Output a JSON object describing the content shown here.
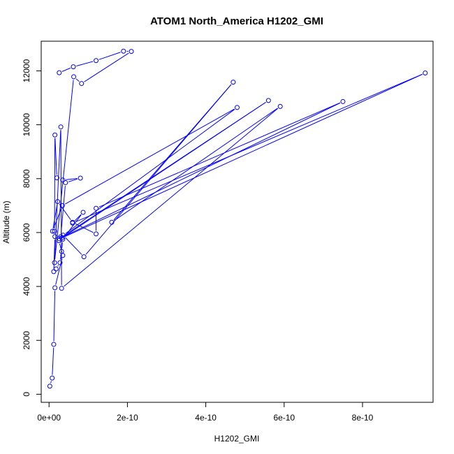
{
  "chart_data": {
    "type": "line",
    "title": "ATOM1 North_America H1202_GMI",
    "xlabel": "H1202_GMI",
    "ylabel": "Altitude (m)",
    "xlim": [
      -2e-11,
      9.8e-10
    ],
    "ylim": [
      -300,
      13100
    ],
    "x_ticks": [
      {
        "value": 0,
        "label": "0e+00"
      },
      {
        "value": 2e-10,
        "label": "2e-10"
      },
      {
        "value": 4e-10,
        "label": "4e-10"
      },
      {
        "value": 6e-10,
        "label": "6e-10"
      },
      {
        "value": 8e-10,
        "label": "8e-10"
      }
    ],
    "y_ticks": [
      {
        "value": 0,
        "label": "0"
      },
      {
        "value": 2000,
        "label": "2000"
      },
      {
        "value": 4000,
        "label": "4000"
      },
      {
        "value": 6000,
        "label": "6000"
      },
      {
        "value": 8000,
        "label": "8000"
      },
      {
        "value": 10000,
        "label": "10000"
      },
      {
        "value": 12000,
        "label": "12000"
      }
    ],
    "grid": false,
    "series_color": "#0000ff",
    "point_marker": "open-circle",
    "series": [
      {
        "x": [
          2e-12,
          8e-12,
          1.2e-11,
          1.5e-11,
          3.5e-11,
          2.5e-11,
          3e-11,
          4.2e-11,
          8e-11,
          3.5e-11,
          2e-11,
          1.5e-11,
          1.4e-11,
          1.5e-11,
          1.2e-11,
          1.8e-11,
          2.8e-11,
          3.2e-11,
          3.5e-11,
          8.7e-11,
          6e-11,
          9.6e-10,
          3.3e-11,
          5.6e-10,
          2.6e-11,
          7.5e-10,
          1.2e-10,
          1.2e-10,
          6e-11,
          2.2e-11,
          9e-12,
          3.4e-11,
          4.8e-10,
          3.6e-11,
          8.9e-11,
          4.7e-10,
          1.6e-10,
          5.9e-10,
          3.2e-11,
          3e-11,
          1.4e-11,
          6.3e-11,
          8.3e-11,
          2.1e-10,
          1.9e-10,
          1.2e-10,
          6.2e-11,
          2.6e-11
        ],
        "y": [
          300,
          600,
          1850,
          3950,
          5150,
          5700,
          5850,
          7850,
          8020,
          7950,
          8030,
          9620,
          6050,
          5850,
          4550,
          4650,
          4880,
          5300,
          5750,
          6750,
          6350,
          11920,
          5800,
          10900,
          5770,
          10860,
          6900,
          5950,
          6380,
          7150,
          6050,
          7000,
          10640,
          5900,
          5100,
          11580,
          6380,
          10680,
          3930,
          9920,
          4880,
          11780,
          11530,
          12720,
          12730,
          12380,
          12150,
          11930
        ]
      }
    ]
  }
}
